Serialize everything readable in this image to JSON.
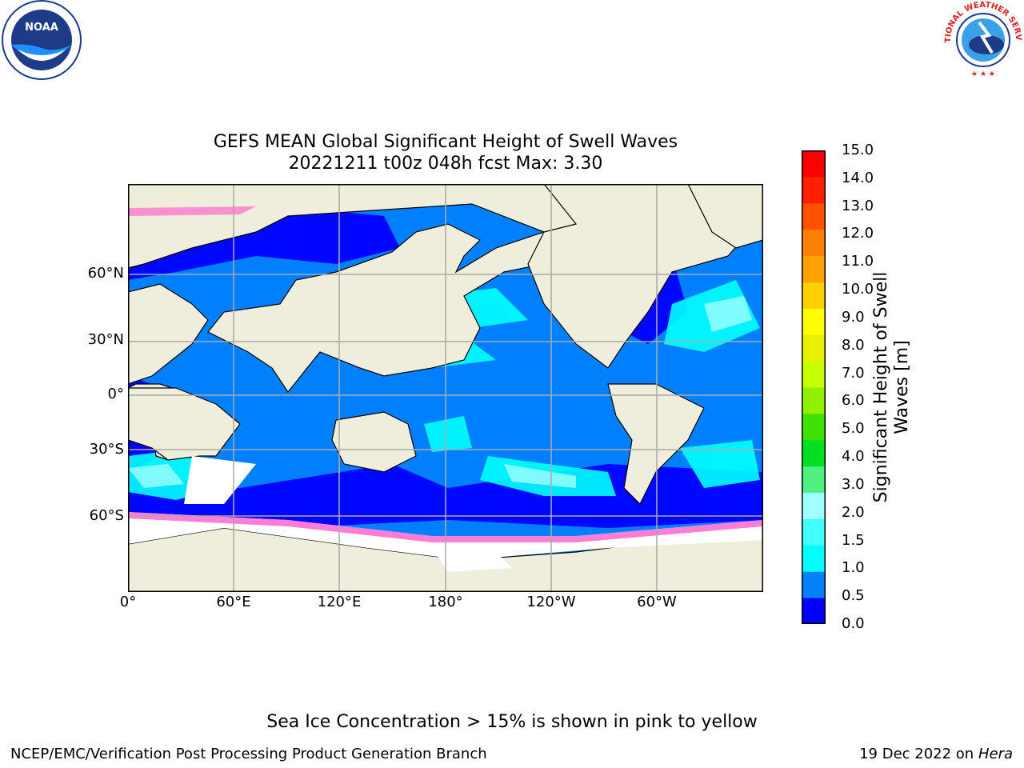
{
  "title_line1": "GEFS MEAN Global Significant Height of Swell Waves",
  "title_line2": "20221211 t00z 048h fcst   Max: 3.30",
  "lat_labels": [
    "60°N",
    "30°N",
    "0°",
    "30°S",
    "60°S"
  ],
  "lon_labels": [
    "0°",
    "60°E",
    "120°E",
    "180°",
    "120°W",
    "60°W"
  ],
  "colorbar": {
    "title_line1": "Significant Height of Swell",
    "title_line2": "Waves [m]",
    "labels": [
      "15.0",
      "14.0",
      "13.0",
      "12.0",
      "11.0",
      "10.0",
      "9.0",
      "8.0",
      "7.0",
      "6.0",
      "5.0",
      "4.0",
      "3.0",
      "2.0",
      "1.5",
      "1.0",
      "0.5",
      "0.0"
    ],
    "colors": [
      "#0000ff",
      "#0080ff",
      "#00ffff",
      "#40ffff",
      "#a0ffff",
      "#50f080",
      "#00e020",
      "#40e000",
      "#90f000",
      "#c8ff00",
      "#e8f000",
      "#ffff00",
      "#ffd000",
      "#ffa000",
      "#ff8000",
      "#ff5000",
      "#ff2000",
      "#ff0000"
    ]
  },
  "note": "Sea Ice Concentration > 15% is shown in pink to yellow",
  "footer_left": "NCEP/EMC/Verification Post Processing Product Generation Branch",
  "footer_date": "19 Dec 2022 on",
  "footer_machine": "Hera",
  "logos": {
    "noaa": "NOAA",
    "nws": "NATIONAL WEATHER SERVICE"
  },
  "map_colors": {
    "land": "#efeedd",
    "ocean_low": "#0000ff",
    "ocean_mid": "#0080ff",
    "ocean_high": "#00ffff",
    "ice": "#ff66cc",
    "antarctica": "#ffffff"
  }
}
